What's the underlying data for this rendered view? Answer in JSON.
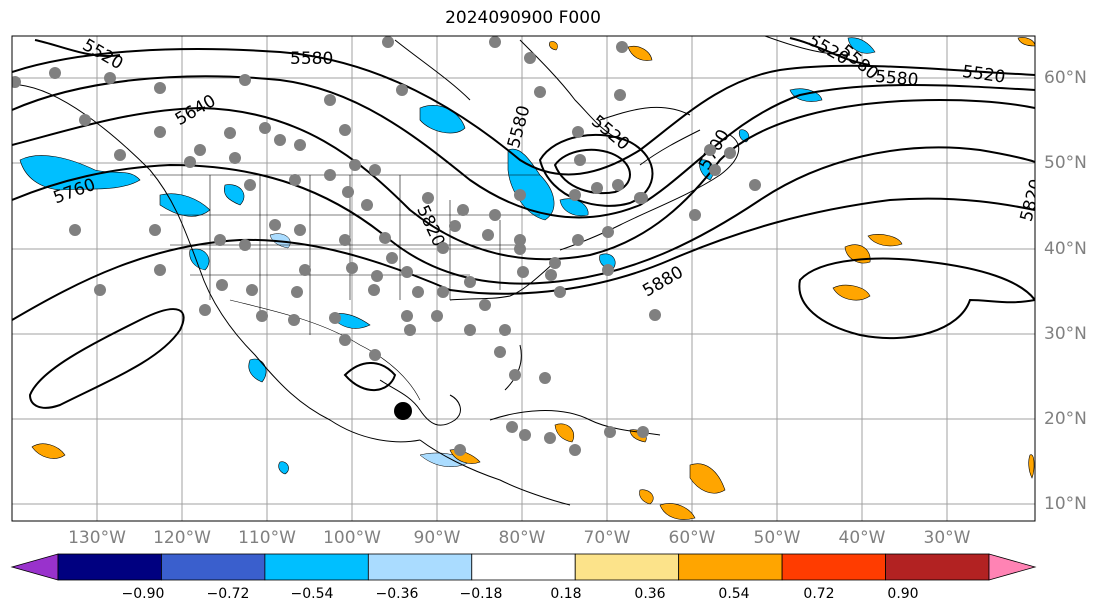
{
  "title": "2024090900 F000",
  "map": {
    "lon_labels": [
      "130°W",
      "120°W",
      "110°W",
      "100°W",
      "90°W",
      "80°W",
      "70°W",
      "60°W",
      "50°W",
      "40°W",
      "30°W"
    ],
    "lat_labels": [
      "60°N",
      "50°N",
      "40°N",
      "30°N",
      "20°N",
      "10°N"
    ],
    "contour_labels": [
      "5520",
      "5580",
      "5640",
      "5760",
      "5580",
      "5520",
      "5700",
      "5820",
      "5880",
      "5820",
      "5580",
      "5520",
      "5520",
      "5580"
    ],
    "colors": {
      "contour": "#000000",
      "station_dot": "#808080",
      "storm_marker": "#000000",
      "negative_anomaly": "#00bfff",
      "light_negative": "#aadcff",
      "positive_anomaly": "#ffa500",
      "grid": "#a0a0a0",
      "label_gray": "#808080"
    }
  },
  "colorbar": {
    "ticks": [
      "−0.90",
      "−0.72",
      "−0.54",
      "−0.36",
      "−0.18",
      "0.18",
      "0.36",
      "0.54",
      "0.72",
      "0.90"
    ],
    "colors": [
      "#9932cc",
      "#000080",
      "#3a5fcd",
      "#00bfff",
      "#aadcff",
      "#ffffff",
      "#fce38a",
      "#ffa500",
      "#ff3c00",
      "#b22222",
      "#ff83b4"
    ]
  }
}
